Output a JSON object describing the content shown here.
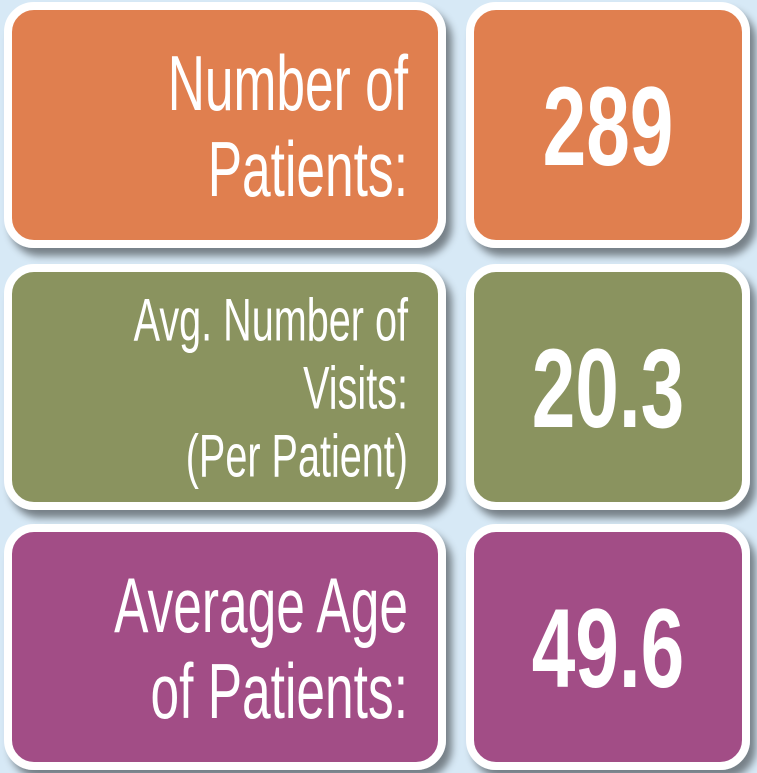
{
  "rows": [
    {
      "label_lines": [
        "Number of",
        "Patients:"
      ],
      "value": 289,
      "color": "#e07f4f"
    },
    {
      "label_lines": [
        "Avg. Number of",
        "Visits:",
        "(Per Patient)"
      ],
      "value": 20.3,
      "color": "#8a935f"
    },
    {
      "label_lines": [
        "Average Age",
        "of Patients:"
      ],
      "value": 49.6,
      "color": "#a24d86"
    }
  ]
}
